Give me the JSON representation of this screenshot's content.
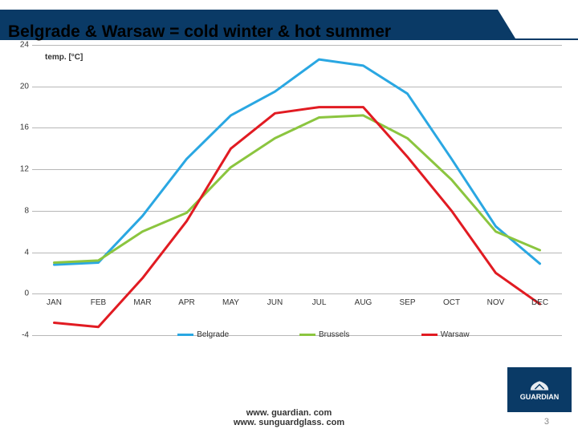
{
  "title": "Belgrade & Warsaw = cold winter & hot summer",
  "title_fontsize": 21,
  "title_bar_color": "#0a3a66",
  "chart": {
    "type": "line",
    "inset_label": "temp. [°C]",
    "inset_fontsize": 10,
    "background_color": "#ffffff",
    "gridline_color": "#b7b7b7",
    "ylim": [
      -4,
      24
    ],
    "ytick_step": 4,
    "yticks": [
      -4,
      0,
      4,
      8,
      12,
      16,
      20,
      24
    ],
    "categories": [
      "JAN",
      "FEB",
      "MAR",
      "APR",
      "MAY",
      "JUN",
      "JUL",
      "AUG",
      "SEP",
      "OCT",
      "NOV",
      "DEC"
    ],
    "x_label_fontsize": 10,
    "line_width": 3,
    "series": [
      {
        "name": "Belgrade",
        "color": "#2aa7e2",
        "values": [
          2.8,
          3.0,
          7.5,
          13.0,
          17.2,
          19.5,
          22.6,
          22.0,
          19.3,
          13.0,
          6.5,
          2.9
        ]
      },
      {
        "name": "Brussels",
        "color": "#8bc53f",
        "values": [
          3.0,
          3.2,
          6.0,
          7.8,
          12.2,
          15.0,
          17.0,
          17.2,
          15.0,
          11.0,
          6.0,
          4.2
        ]
      },
      {
        "name": "Warsaw",
        "color": "#e11b22",
        "values": [
          -2.8,
          -3.2,
          1.5,
          7.0,
          14.0,
          17.4,
          18.0,
          18.0,
          13.2,
          8.0,
          2.0,
          -1.0
        ]
      }
    ],
    "legend_fontsize": 10,
    "legend_positions_pct": [
      32,
      55,
      78
    ]
  },
  "footer": {
    "line1": "www. guardian. com",
    "line2": "www. sunguardglass. com",
    "fontsize": 11
  },
  "brand": {
    "name": "GUARDIAN",
    "bg_color": "#0a3a66",
    "text_color": "#ffffff"
  },
  "page_number": "3"
}
